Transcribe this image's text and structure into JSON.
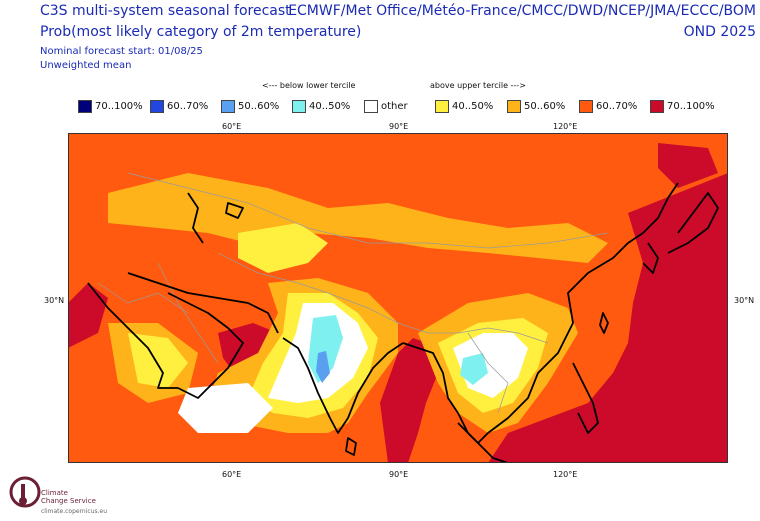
{
  "header": {
    "title_line1": "C3S multi-system seasonal forecast",
    "title_line2": "Prob(most likely category of 2m temperature)",
    "forecast_start": "Nominal forecast start: 01/08/25",
    "weighting": "Unweighted mean",
    "centres": "ECMWF/Met Office/Météo-France/CMCC/DWD/NCEP/JMA/ECCC/BOM",
    "season": "OND 2025"
  },
  "tercile_labels": {
    "lower": "<--- below lower tercile",
    "upper": "above upper tercile --->"
  },
  "legend": [
    {
      "label": "70..100%",
      "color": "#00007a"
    },
    {
      "label": "60..70%",
      "color": "#2247e0"
    },
    {
      "label": "50..60%",
      "color": "#5aa0f0"
    },
    {
      "label": "40..50%",
      "color": "#7ff0f0"
    },
    {
      "label": "other",
      "color": "#ffffff"
    },
    {
      "label": "40..50%",
      "color": "#fff040"
    },
    {
      "label": "50..60%",
      "color": "#ffb31a"
    },
    {
      "label": "60..70%",
      "color": "#ff5a0f"
    },
    {
      "label": "70..100%",
      "color": "#cc0a2a"
    }
  ],
  "axes": {
    "lon_top": [
      "60°E",
      "90°E",
      "120°E"
    ],
    "lon_bottom": [
      "60°E",
      "90°E",
      "120°E"
    ],
    "lat_left": [
      "30°N"
    ],
    "lat_right": [
      "30°N"
    ]
  },
  "colors": {
    "text": "#1a2bb5",
    "coast": "#000000",
    "border": "#9a9a9a"
  },
  "logo": {
    "line1": "Climate",
    "line2": "Change Service",
    "url": "climate.copernicus.eu"
  }
}
